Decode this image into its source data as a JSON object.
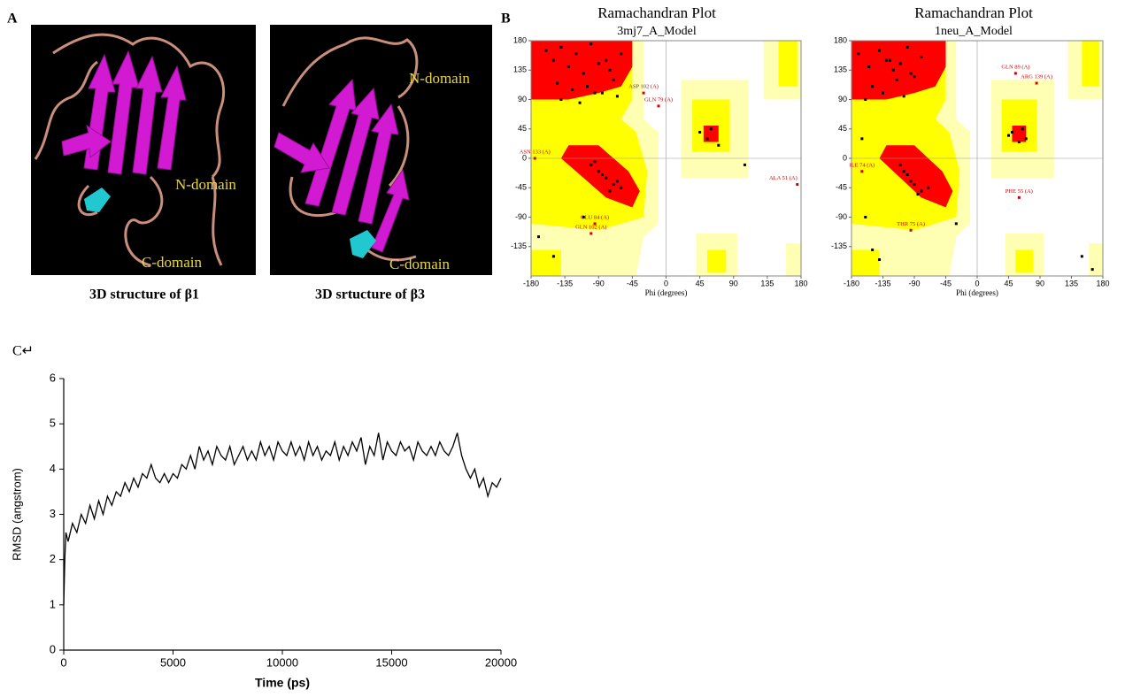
{
  "panels": {
    "a": "A",
    "b": "B",
    "c": "C↵"
  },
  "structures": [
    {
      "caption": "3D structure of β1",
      "labels": [
        "N-domain",
        "C-domain"
      ]
    },
    {
      "caption": "3D srtucture of β3",
      "labels": [
        "N-domain",
        "C-domain"
      ]
    }
  ],
  "chart_data": [
    {
      "type": "ramachandran",
      "title": "Ramachandran Plot",
      "subtitle": "3mj7_A_Model",
      "x_label": "Phi (degrees)",
      "xlim": [
        -180,
        180
      ],
      "ylim": [
        -180,
        180
      ],
      "xticks": [
        -180,
        -135,
        -90,
        -45,
        0,
        45,
        90,
        135,
        180
      ],
      "yticks": [
        -135,
        -90,
        -45,
        0,
        45,
        90,
        135,
        180
      ],
      "point_color": "#000000",
      "label_color": "#d00000",
      "points": {
        "x": [
          -160,
          -150,
          -140,
          -130,
          -120,
          -110,
          -100,
          -90,
          -80,
          -70,
          -145,
          -125,
          -105,
          -85,
          -65,
          -140,
          -115,
          -95,
          -75,
          -60,
          -100,
          -90,
          -80,
          -70,
          -60,
          -95,
          -85,
          -75,
          -65,
          45,
          55,
          60,
          70,
          -110,
          -170,
          -150,
          105
        ],
        "y": [
          165,
          150,
          170,
          140,
          160,
          130,
          175,
          145,
          150,
          120,
          115,
          105,
          110,
          100,
          95,
          90,
          85,
          100,
          135,
          160,
          -10,
          -20,
          -30,
          -40,
          -45,
          -5,
          -25,
          -50,
          -35,
          40,
          30,
          45,
          20,
          -90,
          -120,
          -150,
          -10
        ]
      },
      "labeled_points": [
        {
          "label": "ASP 102 (A)",
          "x": -30,
          "y": 100
        },
        {
          "label": "GLN 79 (A)",
          "x": -10,
          "y": 80
        },
        {
          "label": "ASN 133 (A)",
          "x": -175,
          "y": 0
        },
        {
          "label": "ALA 51 (A)",
          "x": 175,
          "y": -40
        },
        {
          "label": "GLU 84 (A)",
          "x": -95,
          "y": -100
        },
        {
          "label": "GLN 102 (A)",
          "x": -100,
          "y": -115
        }
      ]
    },
    {
      "type": "ramachandran",
      "title": "Ramachandran Plot",
      "subtitle": "1neu_A_Model",
      "x_label": "Phi (degrees)",
      "xlim": [
        -180,
        180
      ],
      "ylim": [
        -180,
        180
      ],
      "xticks": [
        -180,
        -135,
        -90,
        -45,
        0,
        45,
        90,
        135,
        180
      ],
      "yticks": [
        -135,
        -90,
        -45,
        0,
        45,
        90,
        135,
        180
      ],
      "point_color": "#000000",
      "label_color": "#d00000",
      "points": {
        "x": [
          -170,
          -155,
          -140,
          -130,
          -120,
          -110,
          -100,
          -90,
          -80,
          -150,
          -135,
          -115,
          -105,
          -95,
          -160,
          -125,
          -110,
          -100,
          -90,
          -80,
          -70,
          -105,
          -95,
          -85,
          50,
          60,
          65,
          70,
          45,
          -150,
          -140,
          -160,
          -30,
          150,
          165,
          -165
        ],
        "y": [
          160,
          140,
          165,
          150,
          135,
          145,
          170,
          125,
          155,
          110,
          100,
          120,
          95,
          130,
          90,
          150,
          -10,
          -25,
          -40,
          -50,
          -45,
          -20,
          -35,
          -55,
          40,
          25,
          45,
          30,
          35,
          -140,
          -155,
          -90,
          -100,
          -150,
          -170,
          30
        ]
      },
      "labeled_points": [
        {
          "label": "GLN 89 (A)",
          "x": 55,
          "y": 130
        },
        {
          "label": "ARG 139 (A)",
          "x": 85,
          "y": 115
        },
        {
          "label": "ILE 74 (A)",
          "x": -165,
          "y": -20
        },
        {
          "label": "PHE 55 (A)",
          "x": 60,
          "y": -60
        },
        {
          "label": "THR 75 (A)",
          "x": -95,
          "y": -110
        }
      ]
    },
    {
      "type": "line",
      "x_label": "Time (ps)",
      "y_label": "RMSD (angstrom)",
      "color": "#000000",
      "xlim": [
        0,
        20000
      ],
      "ylim": [
        0,
        6
      ],
      "xticks": [
        0,
        5000,
        10000,
        15000,
        20000
      ],
      "yticks": [
        0,
        1,
        2,
        3,
        4,
        5,
        6
      ],
      "x": [
        0,
        50,
        100,
        200,
        400,
        600,
        800,
        1000,
        1200,
        1400,
        1600,
        1800,
        2000,
        2200,
        2400,
        2600,
        2800,
        3000,
        3200,
        3400,
        3600,
        3800,
        4000,
        4200,
        4400,
        4600,
        4800,
        5000,
        5200,
        5400,
        5600,
        5800,
        6000,
        6200,
        6400,
        6600,
        6800,
        7000,
        7200,
        7400,
        7600,
        7800,
        8000,
        8200,
        8400,
        8600,
        8800,
        9000,
        9200,
        9400,
        9600,
        9800,
        10000,
        10200,
        10400,
        10600,
        10800,
        11000,
        11200,
        11400,
        11600,
        11800,
        12000,
        12200,
        12400,
        12600,
        12800,
        13000,
        13200,
        13400,
        13600,
        13800,
        14000,
        14200,
        14400,
        14600,
        14800,
        15000,
        15200,
        15400,
        15600,
        15800,
        16000,
        16200,
        16400,
        16600,
        16800,
        17000,
        17200,
        17400,
        17600,
        17800,
        18000,
        18200,
        18400,
        18600,
        18800,
        19000,
        19200,
        19400,
        19600,
        19800,
        20000
      ],
      "values": [
        1.0,
        2.0,
        2.6,
        2.4,
        2.8,
        2.6,
        3.0,
        2.8,
        3.2,
        2.9,
        3.3,
        3.0,
        3.4,
        3.2,
        3.5,
        3.4,
        3.7,
        3.5,
        3.8,
        3.6,
        3.9,
        3.8,
        4.1,
        3.8,
        3.7,
        3.9,
        3.7,
        3.9,
        3.8,
        4.1,
        4.0,
        4.3,
        4.0,
        4.5,
        4.2,
        4.4,
        4.1,
        4.5,
        4.3,
        4.2,
        4.5,
        4.1,
        4.3,
        4.5,
        4.2,
        4.4,
        4.2,
        4.6,
        4.3,
        4.5,
        4.2,
        4.6,
        4.4,
        4.3,
        4.6,
        4.3,
        4.5,
        4.2,
        4.6,
        4.3,
        4.5,
        4.2,
        4.4,
        4.3,
        4.6,
        4.2,
        4.5,
        4.3,
        4.6,
        4.4,
        4.7,
        4.1,
        4.5,
        4.3,
        4.8,
        4.2,
        4.6,
        4.4,
        4.3,
        4.6,
        4.4,
        4.5,
        4.2,
        4.6,
        4.4,
        4.3,
        4.5,
        4.3,
        4.6,
        4.4,
        4.3,
        4.5,
        4.8,
        4.3,
        4.0,
        3.8,
        4.0,
        3.6,
        3.8,
        3.4,
        3.7,
        3.6,
        3.8
      ]
    }
  ]
}
